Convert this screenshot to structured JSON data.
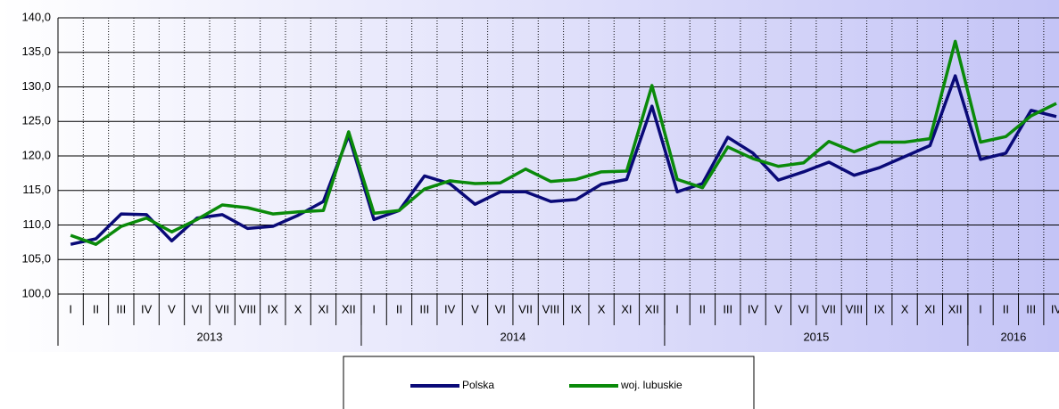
{
  "chart_data": {
    "type": "line",
    "categories": [
      "I",
      "II",
      "III",
      "IV",
      "V",
      "VI",
      "VII",
      "VIII",
      "IX",
      "X",
      "XI",
      "XII",
      "I",
      "II",
      "III",
      "IV",
      "V",
      "VI",
      "VII",
      "VIII",
      "IX",
      "X",
      "XI",
      "XII",
      "I",
      "II",
      "III",
      "IV",
      "V",
      "VI",
      "VII",
      "VIII",
      "IX",
      "X",
      "XI",
      "XII",
      "I",
      "II",
      "III",
      "IV"
    ],
    "year_groups": [
      {
        "name": "2013",
        "size": 12
      },
      {
        "name": "2014",
        "size": 12
      },
      {
        "name": "2015",
        "size": 12
      },
      {
        "name": "2016",
        "size": 4
      }
    ],
    "series": [
      {
        "name": "Polska",
        "color": "#0a0a78",
        "values": [
          107.2,
          108.0,
          111.6,
          111.5,
          107.7,
          111.0,
          111.5,
          109.5,
          109.8,
          111.4,
          113.4,
          123.0,
          110.8,
          112.1,
          117.1,
          116.0,
          113.0,
          114.8,
          114.8,
          113.4,
          113.7,
          115.9,
          116.6,
          127.2,
          114.8,
          116.0,
          122.7,
          120.4,
          116.5,
          117.7,
          119.1,
          117.2,
          118.3,
          119.9,
          121.5,
          131.6,
          119.5,
          120.4,
          126.6,
          125.7
        ]
      },
      {
        "name": "woj. lubuskie",
        "color": "#0a8a0a",
        "values": [
          108.5,
          107.2,
          109.8,
          111.0,
          109.0,
          110.8,
          112.9,
          112.5,
          111.6,
          111.9,
          112.1,
          123.5,
          111.7,
          112.1,
          115.2,
          116.4,
          116.0,
          116.1,
          118.1,
          116.3,
          116.6,
          117.7,
          117.8,
          130.2,
          116.6,
          115.4,
          121.3,
          119.6,
          118.5,
          119.0,
          122.1,
          120.6,
          122.0,
          122.0,
          122.5,
          136.6,
          122.0,
          122.8,
          125.8,
          127.6
        ]
      }
    ],
    "ylim": [
      100,
      140
    ],
    "yticks": [
      {
        "value": 100,
        "label": "100,0"
      },
      {
        "value": 105,
        "label": "105,0"
      },
      {
        "value": 110,
        "label": "110,0"
      },
      {
        "value": 115,
        "label": "115,0"
      },
      {
        "value": 120,
        "label": "120,0"
      },
      {
        "value": 125,
        "label": "125,0"
      },
      {
        "value": 130,
        "label": "130,0"
      },
      {
        "value": 135,
        "label": "135,0"
      },
      {
        "value": 140,
        "label": "140,0"
      }
    ],
    "grid": true,
    "legend": "bottom"
  }
}
